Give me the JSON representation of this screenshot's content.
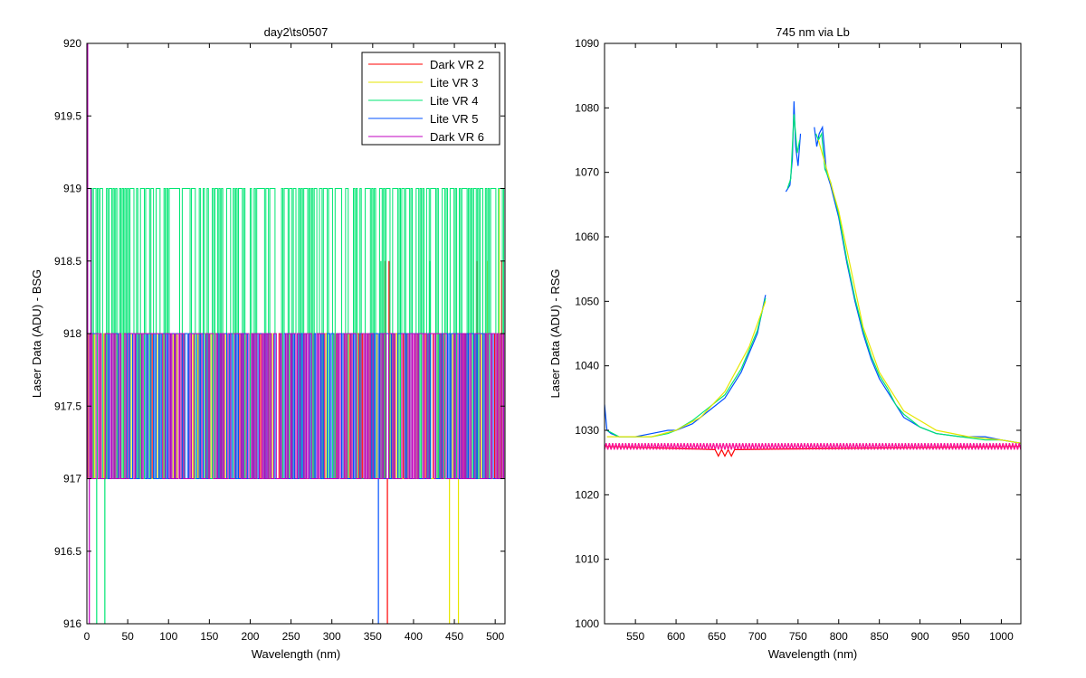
{
  "chart_data": [
    {
      "type": "line",
      "title": "day2\\ts0507",
      "xlabel": "Wavelength (nm)",
      "ylabel": "Laser Data (ADU) - BSG",
      "xlim": [
        0,
        512
      ],
      "ylim": [
        916,
        920
      ],
      "xticks": [
        0,
        50,
        100,
        150,
        200,
        250,
        300,
        350,
        400,
        450,
        500
      ],
      "yticks": [
        916,
        916.5,
        917,
        917.5,
        918,
        918.5,
        919,
        919.5,
        920
      ],
      "legend_position": "top-right",
      "series": [
        {
          "name": "Dark VR 2",
          "color": "#ff0000",
          "levels": [
            917,
            918
          ],
          "spikes": [
            [
              365,
              918.5
            ],
            [
              368,
              916
            ],
            [
              370,
              918.5
            ],
            [
              478,
              918.5
            ],
            [
              490,
              918.5
            ],
            [
              508,
              918.5
            ]
          ]
        },
        {
          "name": "Lite VR 3",
          "color": "#e6e600",
          "levels": [
            917,
            918
          ],
          "spikes": [
            [
              444,
              916
            ],
            [
              455,
              916
            ],
            [
              490,
              918.5
            ],
            [
              505,
              919
            ]
          ]
        },
        {
          "name": "Lite VR 4",
          "color": "#00e673",
          "levels": [
            917,
            919
          ],
          "spikes": [
            [
              12,
              916
            ],
            [
              22,
              916
            ],
            [
              360,
              918.5
            ],
            [
              420,
              918.5
            ]
          ]
        },
        {
          "name": "Lite VR 5",
          "color": "#0050ff",
          "levels": [
            917,
            918
          ],
          "spikes": [
            [
              357,
              916
            ]
          ]
        },
        {
          "name": "Dark VR 6",
          "color": "#c000c0",
          "levels": [
            917,
            918
          ],
          "spikes": [
            [
              1,
              920
            ],
            [
              3,
              916
            ],
            [
              5,
              919
            ],
            [
              512,
              918.5
            ]
          ]
        }
      ]
    },
    {
      "type": "line",
      "title": "745 nm via Lb",
      "xlabel": "Wavelength (nm)",
      "ylabel": "Laser Data (ADU) - RSG",
      "xlim": [
        512,
        1024
      ],
      "ylim": [
        1000,
        1090
      ],
      "xticks": [
        550,
        600,
        650,
        700,
        750,
        800,
        850,
        900,
        950,
        1000
      ],
      "yticks": [
        1000,
        1010,
        1020,
        1030,
        1040,
        1050,
        1060,
        1070,
        1080,
        1090
      ],
      "series": [
        {
          "color": "#0050ff",
          "x": [
            512,
            515,
            520,
            530,
            550,
            570,
            590,
            600,
            620,
            640,
            660,
            680,
            690,
            700,
            705,
            710,
            null,
            735,
            740,
            743,
            745,
            747,
            750,
            753,
            null,
            770,
            773,
            776,
            780,
            785,
            790,
            800,
            810,
            820,
            830,
            840,
            850,
            860,
            870,
            880,
            900,
            920,
            950,
            980,
            1000,
            1024
          ],
          "y": [
            1034,
            1030,
            1029.5,
            1029,
            1029,
            1029.5,
            1030,
            1030,
            1031,
            1033,
            1035,
            1039,
            1042,
            1045,
            1048,
            1051,
            null,
            1067,
            1068,
            1072,
            1081,
            1074,
            1071,
            1076,
            null,
            1077,
            1074,
            1076,
            1077,
            1070,
            1068,
            1063,
            1056,
            1050,
            1045,
            1041,
            1038,
            1036,
            1034,
            1032,
            1030.5,
            1029.5,
            1029,
            1029,
            1028.5,
            1028
          ]
        },
        {
          "color": "#00e673",
          "x": [
            515,
            530,
            550,
            570,
            590,
            600,
            620,
            640,
            660,
            680,
            690,
            700,
            705,
            710,
            null,
            737,
            741,
            745,
            749,
            752,
            null,
            772,
            775,
            779,
            783,
            790,
            800,
            810,
            820,
            830,
            840,
            850,
            860,
            870,
            880,
            900,
            920,
            950,
            980,
            1000,
            1024
          ],
          "y": [
            1030,
            1029,
            1029,
            1029,
            1029.5,
            1030,
            1031.5,
            1033.5,
            1035.5,
            1039.5,
            1042.5,
            1045.5,
            1048,
            1050.5,
            null,
            1067.5,
            1069,
            1079,
            1073,
            1075,
            null,
            1076,
            1075,
            1076,
            1070.5,
            1068.5,
            1063.5,
            1056.5,
            1050.5,
            1045.5,
            1041.5,
            1038.5,
            1036.5,
            1034,
            1032.5,
            1030.5,
            1029.5,
            1029,
            1028.5,
            1028.5,
            1028
          ]
        },
        {
          "color": "#e6e600",
          "x": [
            515,
            540,
            570,
            600,
            630,
            660,
            690,
            710,
            null,
            775,
            800,
            830,
            850,
            880,
            920,
            960,
            1000,
            1024
          ],
          "y": [
            1029,
            1029,
            1029,
            1030,
            1032,
            1036,
            1043,
            1050,
            null,
            1075,
            1064,
            1046,
            1039,
            1033,
            1030,
            1029,
            1028.5,
            1028
          ]
        },
        {
          "color": "#c000c0",
          "x": [
            512,
            1024
          ],
          "y": [
            1027,
            1028
          ]
        },
        {
          "color": "#ff0000",
          "x": [
            512,
            648,
            652,
            656,
            660,
            664,
            668,
            672,
            1024
          ],
          "y": [
            1027.5,
            1027,
            1026,
            1027,
            1026,
            1027,
            1026,
            1027,
            1027.5
          ]
        },
        {
          "color": "#ff1493",
          "x": [
            512,
            1024
          ],
          "y": [
            1027,
            1028
          ]
        }
      ]
    }
  ]
}
